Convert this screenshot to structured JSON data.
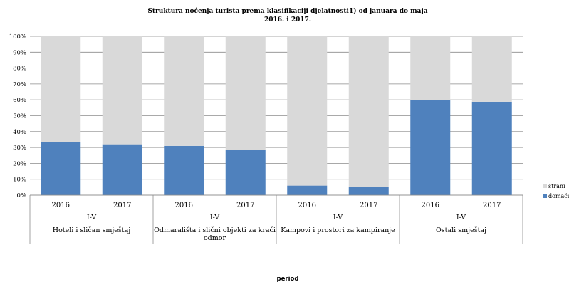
{
  "chart_data": {
    "type": "bar",
    "stacked": true,
    "percent_stacked": true,
    "title_lines": [
      "Struktura noćenja  turista prema klasifikaciji djelatnosti1) od januara do  maja",
      "2016. i 2017."
    ],
    "xlabel": "period",
    "ylabel": "",
    "ylim": [
      0,
      100
    ],
    "y_ticks": [
      "0%",
      "10%",
      "20%",
      "30%",
      "40%",
      "50%",
      "60%",
      "70%",
      "80%",
      "90%",
      "100%"
    ],
    "categories": [
      {
        "year": "2016",
        "period": "I-V",
        "group": "Hoteli i sličan smještaj"
      },
      {
        "year": "2017",
        "period": "I-V",
        "group": "Hoteli i sličan smještaj"
      },
      {
        "year": "2016",
        "period": "I-V",
        "group": "Odmarališta i slični objekti za kraći odmor"
      },
      {
        "year": "2017",
        "period": "I-V",
        "group": "Odmarališta i slični objekti za kraći odmor"
      },
      {
        "year": "2016",
        "period": "I-V",
        "group": "Kampovi i prostori za kampiranje"
      },
      {
        "year": "2017",
        "period": "I-V",
        "group": "Kampovi i prostori za kampiranje"
      },
      {
        "year": "2016",
        "period": "I-V",
        "group": "Ostali smještaj"
      },
      {
        "year": "2017",
        "period": "I-V",
        "group": "Ostali smještaj"
      }
    ],
    "groups": [
      {
        "period": "I-V",
        "name_lines": [
          "Hoteli i sličan smještaj"
        ]
      },
      {
        "period": "I-V",
        "name_lines": [
          "Odmarališta i slični objekti za kraći",
          "odmor"
        ]
      },
      {
        "period": "I-V",
        "name_lines": [
          "Kampovi i prostori za kampiranje"
        ]
      },
      {
        "period": "I-V",
        "name_lines": [
          "Ostali smještaj"
        ]
      }
    ],
    "series": [
      {
        "name": "domaći",
        "color": "#4f81bd",
        "values": [
          33.5,
          32,
          31,
          28.5,
          6,
          5,
          60,
          58.8
        ]
      },
      {
        "name": "strani",
        "color": "#d9d9d9",
        "values": [
          66.5,
          68,
          69,
          71.5,
          94,
          95,
          40,
          41.2
        ]
      }
    ],
    "legend_position": "right",
    "grid": true
  }
}
